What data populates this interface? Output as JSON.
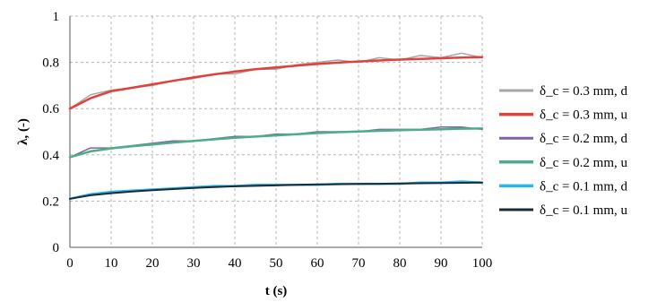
{
  "chart_data": {
    "type": "line",
    "title": "",
    "xlabel": "t (s)",
    "ylabel": "λ, (-)",
    "xlim": [
      0,
      100
    ],
    "ylim": [
      0,
      1
    ],
    "x_ticks": [
      "0",
      "10",
      "20",
      "30",
      "40",
      "50",
      "60",
      "70",
      "80",
      "90",
      "100"
    ],
    "y_ticks": [
      "0",
      "0.2",
      "0.4",
      "0.6",
      "0.8",
      "1"
    ],
    "grid": true,
    "legend_position": "right",
    "x": [
      0,
      5,
      10,
      15,
      20,
      25,
      30,
      35,
      40,
      45,
      50,
      55,
      60,
      65,
      70,
      75,
      80,
      85,
      90,
      95,
      100
    ],
    "series": [
      {
        "name": "δ_c = 0.3 mm, d",
        "color": "#a6a6a6",
        "width": 1.5,
        "values": [
          0.6,
          0.66,
          0.68,
          0.69,
          0.7,
          0.72,
          0.73,
          0.75,
          0.75,
          0.77,
          0.77,
          0.79,
          0.8,
          0.81,
          0.8,
          0.82,
          0.81,
          0.83,
          0.82,
          0.84,
          0.82
        ]
      },
      {
        "name": "δ_c = 0.3 mm, u",
        "color": "#e0413c",
        "width": 2.5,
        "values": [
          0.6,
          0.645,
          0.675,
          0.69,
          0.705,
          0.72,
          0.735,
          0.748,
          0.76,
          0.77,
          0.778,
          0.786,
          0.793,
          0.799,
          0.804,
          0.808,
          0.812,
          0.815,
          0.818,
          0.821,
          0.823
        ]
      },
      {
        "name": "δ_c = 0.2 mm, d",
        "color": "#8064a2",
        "width": 1.5,
        "values": [
          0.39,
          0.43,
          0.43,
          0.44,
          0.45,
          0.46,
          0.46,
          0.47,
          0.48,
          0.48,
          0.49,
          0.49,
          0.5,
          0.5,
          0.5,
          0.51,
          0.51,
          0.51,
          0.52,
          0.52,
          0.51
        ]
      },
      {
        "name": "δ_c = 0.2 mm, u",
        "color": "#4ead86",
        "width": 2.5,
        "values": [
          0.39,
          0.415,
          0.428,
          0.437,
          0.445,
          0.453,
          0.46,
          0.467,
          0.474,
          0.479,
          0.484,
          0.489,
          0.494,
          0.498,
          0.501,
          0.504,
          0.507,
          0.509,
          0.511,
          0.513,
          0.514
        ]
      },
      {
        "name": "δ_c = 0.1 mm, d",
        "color": "#27b7e8",
        "width": 2.5,
        "values": [
          0.21,
          0.23,
          0.24,
          0.245,
          0.25,
          0.255,
          0.26,
          0.265,
          0.265,
          0.27,
          0.27,
          0.27,
          0.27,
          0.275,
          0.275,
          0.275,
          0.275,
          0.28,
          0.28,
          0.285,
          0.28
        ]
      },
      {
        "name": "δ_c = 0.1 mm, u",
        "color": "#1a2a3a",
        "width": 2,
        "values": [
          0.21,
          0.225,
          0.234,
          0.241,
          0.247,
          0.252,
          0.257,
          0.261,
          0.264,
          0.266,
          0.268,
          0.27,
          0.272,
          0.273,
          0.274,
          0.275,
          0.276,
          0.277,
          0.278,
          0.279,
          0.28
        ]
      }
    ]
  }
}
